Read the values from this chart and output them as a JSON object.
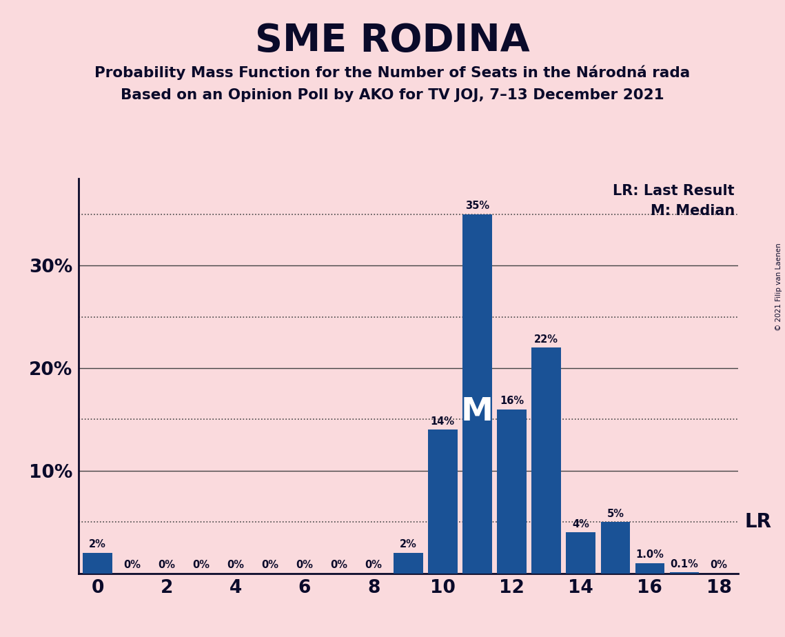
{
  "title": "SME RODINA",
  "subtitle1": "Probability Mass Function for the Number of Seats in the Národná rada",
  "subtitle2": "Based on an Opinion Poll by AKO for TV JOJ, 7–13 December 2021",
  "copyright": "© 2021 Filip van Laenen",
  "background_color": "#fadadd",
  "bar_color": "#1a5296",
  "title_color": "#0a0a2a",
  "seats": [
    0,
    1,
    2,
    3,
    4,
    5,
    6,
    7,
    8,
    9,
    10,
    11,
    12,
    13,
    14,
    15,
    16,
    17,
    18
  ],
  "probabilities": [
    0.02,
    0.0,
    0.0,
    0.0,
    0.0,
    0.0,
    0.0,
    0.0,
    0.0,
    0.02,
    0.14,
    0.35,
    0.16,
    0.22,
    0.04,
    0.05,
    0.01,
    0.001,
    0.0
  ],
  "labels": [
    "2%",
    "0%",
    "0%",
    "0%",
    "0%",
    "0%",
    "0%",
    "0%",
    "0%",
    "2%",
    "14%",
    "35%",
    "16%",
    "22%",
    "4%",
    "5%",
    "1.0%",
    "0.1%",
    "0%"
  ],
  "median_seat": 11,
  "lr_value": 0.05,
  "ylim": [
    0,
    0.385
  ],
  "solid_yticks": [
    0.1,
    0.2,
    0.3
  ],
  "solid_ytick_labels": [
    "10%",
    "20%",
    "30%"
  ],
  "dotted_lines": [
    0.05,
    0.15,
    0.25,
    0.35
  ],
  "xticks": [
    0,
    2,
    4,
    6,
    8,
    10,
    12,
    14,
    16,
    18
  ],
  "grid_color": "#444444",
  "lr_label": "LR",
  "median_label": "M",
  "legend_lr": "LR: Last Result",
  "legend_m": "M: Median"
}
